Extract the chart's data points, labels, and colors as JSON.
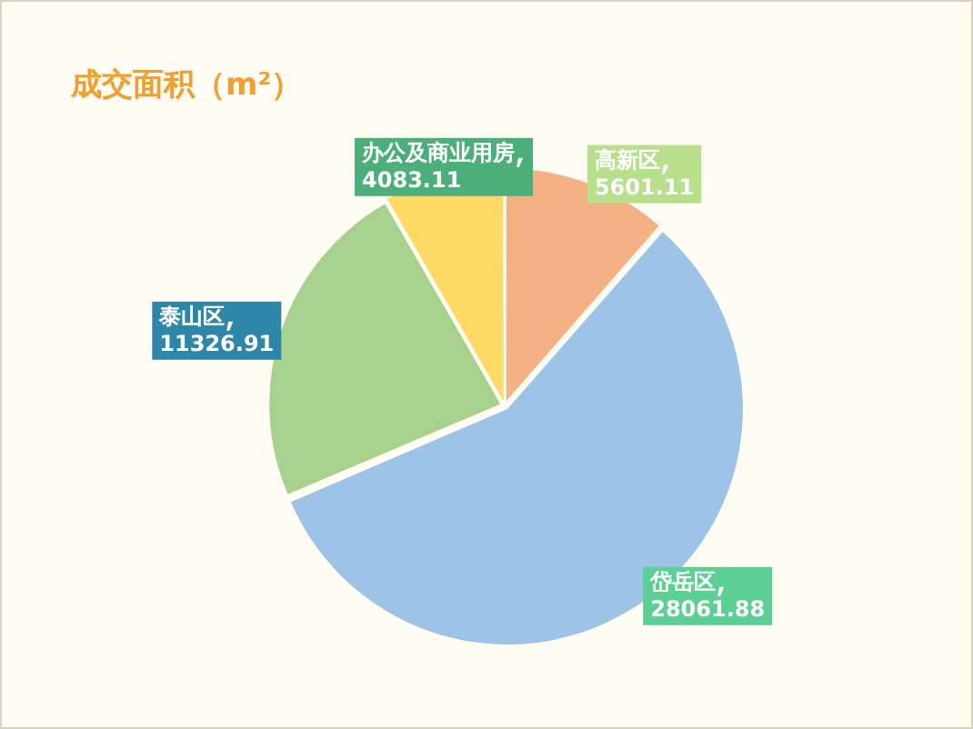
{
  "chart_data": {
    "type": "pie",
    "title": "成交面积（m²）",
    "categories": [
      "高新区",
      "岱岳区",
      "泰山区",
      "办公及商业用房"
    ],
    "values": [
      5601.11,
      28061.88,
      11326.91,
      4083.11
    ],
    "colors": [
      "#f4b183",
      "#9dc3e6",
      "#a9d18e",
      "#ffd966"
    ],
    "data_labels": true,
    "legend": false
  }
}
